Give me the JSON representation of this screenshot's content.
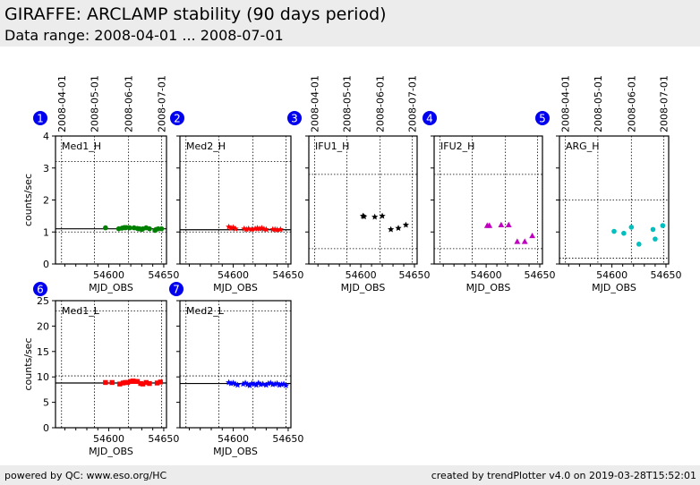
{
  "header": {
    "title": "GIRAFFE: ARCLAMP stability (90 days period)",
    "subtitle": "Data range: 2008-04-01 ... 2008-07-01"
  },
  "footer": {
    "left": "powered by QC: www.eso.org/HC",
    "right": "created by trendPlotter v4.0 on 2019-03-28T15:52:01"
  },
  "colors": {
    "badge": "#0000ee",
    "green": "#008000",
    "red": "#ff0000",
    "black": "#000000",
    "magenta": "#bf00bf",
    "cyan": "#00bfbf",
    "blue": "#0000ff"
  },
  "chart_data": [
    {
      "type": "scatter",
      "badge": "1",
      "title": "Med1_H",
      "marker": "circle",
      "color": "#008000",
      "xlabel": "MJD_OBS",
      "ylabel": "counts/sec",
      "xlim": [
        54551.5,
        54652.5
      ],
      "ylim": [
        0,
        4
      ],
      "xticks": [
        54600,
        54650
      ],
      "yticks": [
        0,
        1,
        2,
        3,
        4
      ],
      "yticklabels": [
        "0",
        "1",
        "2",
        "3",
        "4"
      ],
      "show_yticklabels": true,
      "date_lines": [
        {
          "mjd": 54557,
          "label": "2008-04-01"
        },
        {
          "mjd": 54587,
          "label": "2008-05-01"
        },
        {
          "mjd": 54618,
          "label": "2008-06-01"
        },
        {
          "mjd": 54648,
          "label": "2008-07-01"
        }
      ],
      "hlines": {
        "mean": 1.1,
        "limits": [
          1.0,
          3.2
        ]
      },
      "x": [
        54597,
        54609,
        54612,
        54614,
        54615,
        54616,
        54619,
        54623,
        54626,
        54627,
        54628,
        54630,
        54631,
        54634,
        54637,
        54642,
        54643,
        54645,
        54648
      ],
      "y": [
        1.13,
        1.1,
        1.12,
        1.14,
        1.13,
        1.14,
        1.13,
        1.13,
        1.11,
        1.1,
        1.1,
        1.08,
        1.1,
        1.13,
        1.1,
        1.05,
        1.08,
        1.1,
        1.1
      ]
    },
    {
      "type": "scatter",
      "badge": "2",
      "title": "Med2_H",
      "marker": "star",
      "color": "#ff0000",
      "xlabel": "MJD_OBS",
      "ylabel": "",
      "xlim": [
        54551.5,
        54652.5
      ],
      "ylim": [
        0,
        4
      ],
      "xticks": [
        54600,
        54650
      ],
      "yticks": [
        0,
        1,
        2,
        3,
        4
      ],
      "yticklabels": [
        "0",
        "1",
        "2",
        "3",
        "4"
      ],
      "show_yticklabels": false,
      "date_lines": [
        {
          "mjd": 54557,
          "label": ""
        },
        {
          "mjd": 54587,
          "label": ""
        },
        {
          "mjd": 54618,
          "label": ""
        },
        {
          "mjd": 54648,
          "label": ""
        }
      ],
      "hlines": {
        "mean": 1.07,
        "limits": [
          1.0,
          3.2
        ]
      },
      "x": [
        54596,
        54598,
        54600,
        54602,
        54610,
        54612,
        54614,
        54617,
        54620,
        54622,
        54624,
        54626,
        54628,
        54630,
        54636,
        54638,
        54640,
        54643
      ],
      "y": [
        1.16,
        1.12,
        1.14,
        1.1,
        1.1,
        1.08,
        1.1,
        1.08,
        1.1,
        1.12,
        1.1,
        1.12,
        1.09,
        1.08,
        1.08,
        1.08,
        1.07,
        1.08
      ]
    },
    {
      "type": "scatter",
      "badge": "3",
      "title": "IFU1_H",
      "marker": "star",
      "color": "#000000",
      "xlabel": "MJD_OBS",
      "ylabel": "",
      "xlim": [
        54551.5,
        54652.5
      ],
      "ylim": [
        0,
        4
      ],
      "xticks": [
        54600,
        54650
      ],
      "yticks": [
        0,
        1,
        2,
        3,
        4
      ],
      "yticklabels": [
        "0",
        "1",
        "2",
        "3",
        "4"
      ],
      "show_yticklabels": false,
      "date_lines": [
        {
          "mjd": 54557,
          "label": "2008-04-01"
        },
        {
          "mjd": 54587,
          "label": "2008-05-01"
        },
        {
          "mjd": 54618,
          "label": "2008-06-01"
        },
        {
          "mjd": 54648,
          "label": "2008-07-01"
        }
      ],
      "hlines": {
        "mean": null,
        "limits": [
          0.48,
          2.8
        ]
      },
      "x": [
        54602,
        54603,
        54613,
        54620,
        54628,
        54635,
        54642
      ],
      "y": [
        1.5,
        1.48,
        1.47,
        1.5,
        1.08,
        1.12,
        1.22
      ]
    },
    {
      "type": "scatter",
      "badge": "4",
      "title": "IFU2_H",
      "marker": "triangle",
      "color": "#bf00bf",
      "xlabel": "MJD_OBS",
      "ylabel": "",
      "xlim": [
        54551.5,
        54652.5
      ],
      "ylim": [
        0,
        4
      ],
      "xticks": [
        54600,
        54650
      ],
      "yticks": [
        0,
        1,
        2,
        3,
        4
      ],
      "yticklabels": [
        "0",
        "1",
        "2",
        "3",
        "4"
      ],
      "show_yticklabels": false,
      "date_lines": [
        {
          "mjd": 54557,
          "label": ""
        },
        {
          "mjd": 54587,
          "label": ""
        },
        {
          "mjd": 54618,
          "label": ""
        },
        {
          "mjd": 54648,
          "label": ""
        }
      ],
      "hlines": {
        "mean": null,
        "limits": [
          0.48,
          2.8
        ]
      },
      "x": [
        54601,
        54603,
        54614,
        54621,
        54629,
        54636,
        54643
      ],
      "y": [
        1.2,
        1.2,
        1.22,
        1.22,
        0.7,
        0.7,
        0.88
      ]
    },
    {
      "type": "scatter",
      "badge": "5",
      "title": "ARG_H",
      "marker": "circle",
      "color": "#00bfbf",
      "xlabel": "MJD_OBS",
      "ylabel": "",
      "xlim": [
        54551.5,
        54652.5
      ],
      "ylim": [
        0,
        4
      ],
      "xticks": [
        54600,
        54650
      ],
      "yticks": [
        0,
        1,
        2,
        3,
        4
      ],
      "yticklabels": [
        "0",
        "1",
        "2",
        "3",
        "4"
      ],
      "show_yticklabels": false,
      "date_lines": [
        {
          "mjd": 54557,
          "label": "2008-04-01"
        },
        {
          "mjd": 54587,
          "label": "2008-05-01"
        },
        {
          "mjd": 54618,
          "label": "2008-06-01"
        },
        {
          "mjd": 54648,
          "label": "2008-07-01"
        }
      ],
      "hlines": {
        "mean": null,
        "limits": [
          0.18,
          2.0
        ]
      },
      "x": [
        54602,
        54611,
        54618,
        54625,
        54638,
        54640,
        54647
      ],
      "y": [
        1.02,
        0.96,
        1.15,
        0.62,
        1.08,
        0.78,
        1.2
      ]
    },
    {
      "type": "scatter",
      "badge": "6",
      "title": "Med1_L",
      "marker": "square",
      "color": "#ff0000",
      "xlabel": "MJD_OBS",
      "ylabel": "counts/sec",
      "xlim": [
        54551.5,
        54652.5
      ],
      "ylim": [
        0,
        25
      ],
      "xticks": [
        54600,
        54650
      ],
      "yticks": [
        0,
        5,
        10,
        15,
        20,
        25
      ],
      "yticklabels": [
        "0",
        "5",
        "10",
        "15",
        "20",
        "25"
      ],
      "show_yticklabels": true,
      "date_lines": [
        {
          "mjd": 54557,
          "label": ""
        },
        {
          "mjd": 54587,
          "label": ""
        },
        {
          "mjd": 54618,
          "label": ""
        },
        {
          "mjd": 54648,
          "label": ""
        }
      ],
      "hlines": {
        "mean": 8.8,
        "limits": [
          10.2,
          23.0
        ]
      },
      "x": [
        54597,
        54603,
        54610,
        54613,
        54615,
        54617,
        54620,
        54622,
        54624,
        54626,
        54629,
        54631,
        54634,
        54637,
        54644,
        54647
      ],
      "y": [
        8.9,
        8.9,
        8.6,
        8.8,
        8.9,
        8.9,
        9.1,
        9.2,
        9.1,
        9.1,
        8.7,
        8.6,
        8.9,
        8.7,
        8.8,
        9.0
      ]
    },
    {
      "type": "scatter",
      "badge": "7",
      "title": "Med2_L",
      "marker": "star",
      "color": "#0000ff",
      "xlabel": "MJD_OBS",
      "ylabel": "",
      "xlim": [
        54551.5,
        54652.5
      ],
      "ylim": [
        0,
        25
      ],
      "xticks": [
        54600,
        54650
      ],
      "yticks": [
        0,
        5,
        10,
        15,
        20,
        25
      ],
      "yticklabels": [
        "0",
        "5",
        "10",
        "15",
        "20",
        "25"
      ],
      "show_yticklabels": false,
      "date_lines": [
        {
          "mjd": 54557,
          "label": ""
        },
        {
          "mjd": 54587,
          "label": ""
        },
        {
          "mjd": 54618,
          "label": ""
        },
        {
          "mjd": 54648,
          "label": ""
        }
      ],
      "hlines": {
        "mean": 8.7,
        "limits": [
          10.2,
          23.0
        ]
      },
      "x": [
        54596,
        54598,
        54600,
        54602,
        54604,
        54609,
        54611,
        54613,
        54615,
        54617,
        54619,
        54621,
        54623,
        54625,
        54627,
        54630,
        54632,
        54634,
        54636,
        54638,
        54640,
        54642,
        54644,
        54646,
        54648
      ],
      "y": [
        8.9,
        8.7,
        8.8,
        8.6,
        8.4,
        8.6,
        8.8,
        8.5,
        8.3,
        8.7,
        8.6,
        8.4,
        8.8,
        8.5,
        8.6,
        8.4,
        8.7,
        8.8,
        8.5,
        8.6,
        8.7,
        8.4,
        8.5,
        8.6,
        8.3
      ]
    }
  ]
}
